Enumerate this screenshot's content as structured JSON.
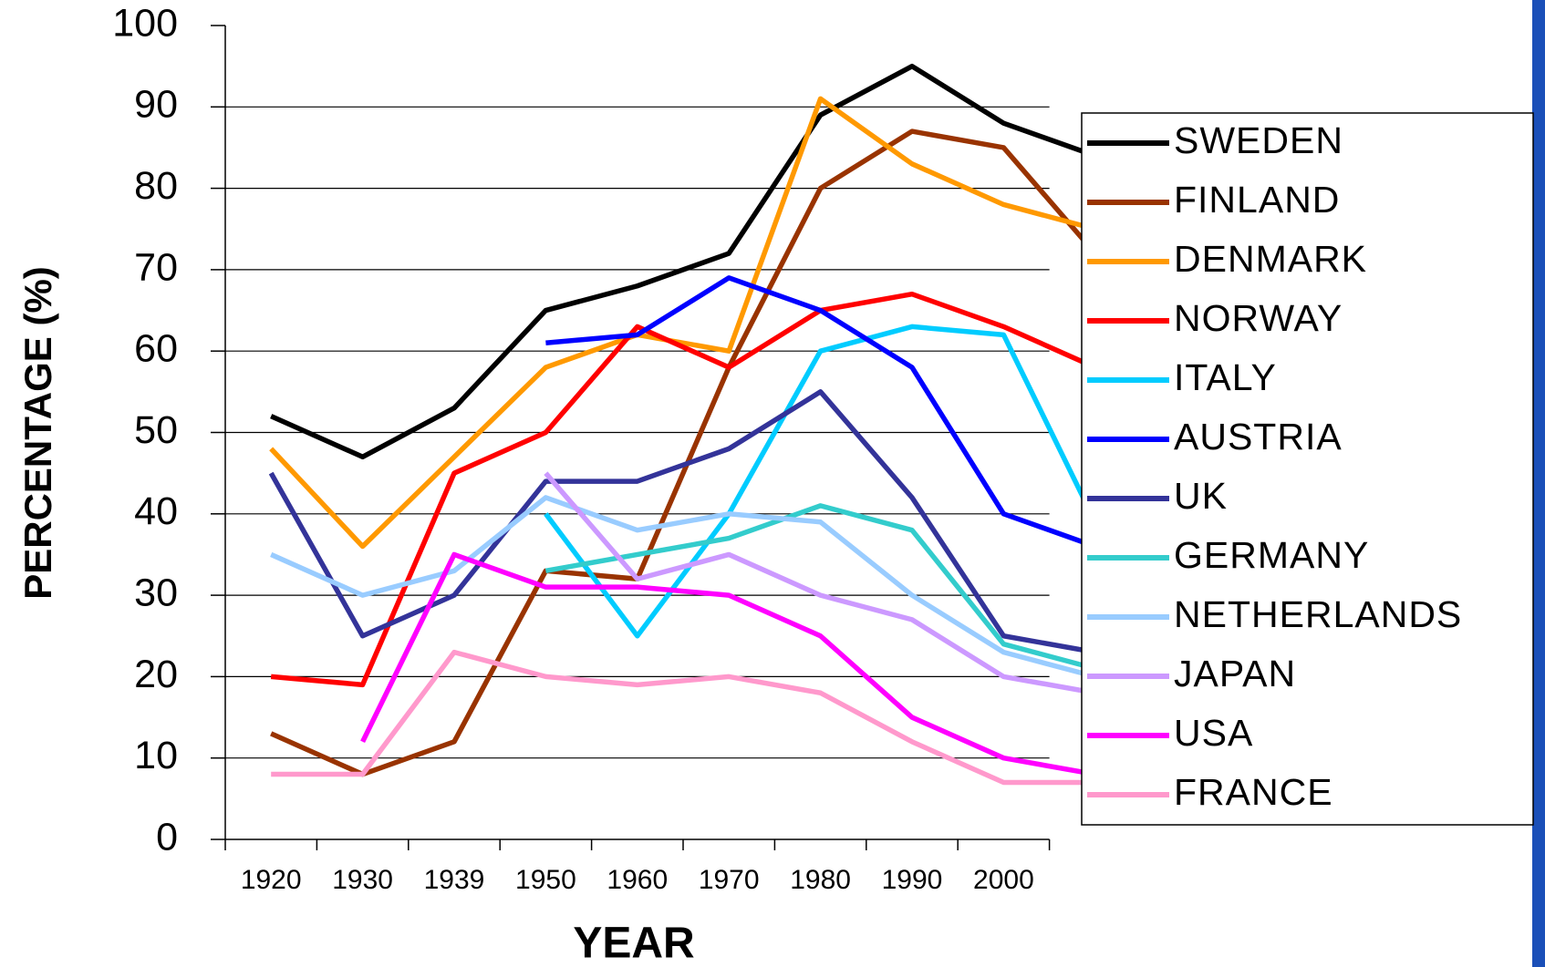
{
  "chart_data": {
    "type": "line",
    "x_label": "YEAR",
    "y_label": "PERCENTAGE (%)",
    "categories": [
      "1920",
      "1930",
      "1939",
      "1950",
      "1960",
      "1970",
      "1980",
      "1990",
      "2000",
      null
    ],
    "ylim": [
      0,
      100
    ],
    "yticks": [
      0,
      10,
      20,
      30,
      40,
      50,
      60,
      70,
      80,
      90,
      100
    ],
    "grid": true,
    "legend": "right",
    "series": [
      {
        "name": "SWEDEN",
        "color": "#000000",
        "values": [
          52,
          47,
          53,
          65,
          68,
          72,
          89,
          95,
          88,
          84
        ]
      },
      {
        "name": "FINLAND",
        "color": "#993300",
        "values": [
          13,
          8,
          12,
          33,
          32,
          58,
          80,
          87,
          85,
          72
        ]
      },
      {
        "name": "DENMARK",
        "color": "#ff9900",
        "values": [
          48,
          36,
          47,
          58,
          62,
          60,
          91,
          83,
          78,
          75
        ]
      },
      {
        "name": "NORWAY",
        "color": "#ff0000",
        "values": [
          20,
          19,
          45,
          50,
          63,
          58,
          65,
          67,
          63,
          58
        ]
      },
      {
        "name": "ITALY",
        "color": "#00ccff",
        "values": [
          null,
          null,
          null,
          40,
          25,
          40,
          60,
          63,
          62,
          39
        ]
      },
      {
        "name": "AUSTRIA",
        "color": "#0000ff",
        "values": [
          null,
          null,
          null,
          61,
          62,
          69,
          65,
          58,
          40,
          36
        ]
      },
      {
        "name": "UK",
        "color": "#333399",
        "values": [
          45,
          25,
          30,
          44,
          44,
          48,
          55,
          42,
          25,
          23
        ]
      },
      {
        "name": "GERMANY",
        "color": "#33cccc",
        "values": [
          null,
          null,
          null,
          33,
          35,
          37,
          41,
          38,
          24,
          21
        ]
      },
      {
        "name": "NETHERLANDS",
        "color": "#99ccff",
        "values": [
          35,
          30,
          33,
          42,
          38,
          40,
          39,
          30,
          23,
          20
        ]
      },
      {
        "name": "JAPAN",
        "color": "#cc99ff",
        "values": [
          null,
          null,
          null,
          45,
          32,
          35,
          30,
          27,
          20,
          18
        ]
      },
      {
        "name": "USA",
        "color": "#ff00ff",
        "values": [
          null,
          12,
          35,
          31,
          31,
          30,
          25,
          15,
          10,
          8
        ]
      },
      {
        "name": "FRANCE",
        "color": "#ff99cc",
        "values": [
          8,
          8,
          23,
          20,
          19,
          20,
          18,
          12,
          7,
          7
        ]
      }
    ]
  }
}
